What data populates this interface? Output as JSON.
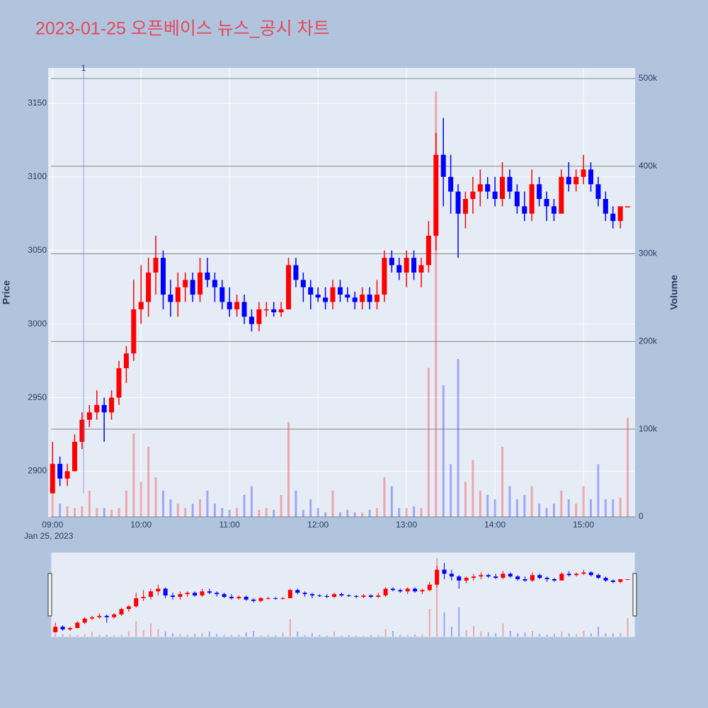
{
  "chart_data": {
    "type": "candlestick",
    "title": "2023-01-25 오픈베이스 뉴스_공시 차트",
    "ylabel": "Price",
    "y2label": "Volume",
    "x": [
      "2023-01-25 09:00",
      "2023-01-25 09:05",
      "2023-01-25 09:10",
      "2023-01-25 09:15",
      "2023-01-25 09:20",
      "2023-01-25 09:25",
      "2023-01-25 09:30",
      "2023-01-25 09:35",
      "2023-01-25 09:40",
      "2023-01-25 09:45",
      "2023-01-25 09:50",
      "2023-01-25 09:55",
      "2023-01-25 10:00",
      "2023-01-25 10:05",
      "2023-01-25 10:10",
      "2023-01-25 10:15",
      "2023-01-25 10:20",
      "2023-01-25 10:25",
      "2023-01-25 10:30",
      "2023-01-25 10:35",
      "2023-01-25 10:40",
      "2023-01-25 10:45",
      "2023-01-25 10:50",
      "2023-01-25 10:55",
      "2023-01-25 11:00",
      "2023-01-25 11:05",
      "2023-01-25 11:10",
      "2023-01-25 11:15",
      "2023-01-25 11:20",
      "2023-01-25 11:25",
      "2023-01-25 11:30",
      "2023-01-25 11:35",
      "2023-01-25 11:40",
      "2023-01-25 11:45",
      "2023-01-25 11:50",
      "2023-01-25 11:55",
      "2023-01-25 12:00",
      "2023-01-25 12:05",
      "2023-01-25 12:10",
      "2023-01-25 12:15",
      "2023-01-25 12:20",
      "2023-01-25 12:25",
      "2023-01-25 12:30",
      "2023-01-25 12:35",
      "2023-01-25 12:40",
      "2023-01-25 12:45",
      "2023-01-25 12:50",
      "2023-01-25 12:55",
      "2023-01-25 13:00",
      "2023-01-25 13:05",
      "2023-01-25 13:10",
      "2023-01-25 13:15",
      "2023-01-25 13:20",
      "2023-01-25 13:25",
      "2023-01-25 13:30",
      "2023-01-25 13:35",
      "2023-01-25 13:40",
      "2023-01-25 13:45",
      "2023-01-25 13:50",
      "2023-01-25 13:55",
      "2023-01-25 14:00",
      "2023-01-25 14:05",
      "2023-01-25 14:10",
      "2023-01-25 14:15",
      "2023-01-25 14:20",
      "2023-01-25 14:25",
      "2023-01-25 14:30",
      "2023-01-25 14:35",
      "2023-01-25 14:40",
      "2023-01-25 14:45",
      "2023-01-25 14:50",
      "2023-01-25 14:55",
      "2023-01-25 15:00",
      "2023-01-25 15:05",
      "2023-01-25 15:10",
      "2023-01-25 15:15",
      "2023-01-25 15:20",
      "2023-01-25 15:25",
      "2023-01-25 15:30"
    ],
    "open": [
      2885,
      2905,
      2895,
      2900,
      2920,
      2935,
      2940,
      2945,
      2940,
      2950,
      2970,
      2980,
      3010,
      3015,
      3035,
      3045,
      3020,
      3015,
      3025,
      3030,
      3020,
      3035,
      3030,
      3025,
      3015,
      3010,
      3015,
      3005,
      3000,
      3010,
      3010,
      3008,
      3010,
      3040,
      3030,
      3025,
      3020,
      3018,
      3015,
      3025,
      3020,
      3018,
      3015,
      3020,
      3015,
      3020,
      3045,
      3040,
      3035,
      3045,
      3035,
      3040,
      3060,
      3115,
      3100,
      3090,
      3075,
      3085,
      3090,
      3095,
      3090,
      3085,
      3100,
      3090,
      3080,
      3075,
      3095,
      3085,
      3080,
      3075,
      3100,
      3095,
      3100,
      3105,
      3095,
      3085,
      3075,
      3070,
      3080
    ],
    "high": [
      2920,
      2910,
      2905,
      2925,
      2940,
      2945,
      2955,
      2950,
      2955,
      2975,
      2985,
      3030,
      3040,
      3045,
      3060,
      3050,
      3030,
      3035,
      3035,
      3035,
      3045,
      3045,
      3035,
      3030,
      3025,
      3020,
      3020,
      3010,
      3015,
      3015,
      3015,
      3015,
      3045,
      3045,
      3035,
      3030,
      3025,
      3025,
      3030,
      3030,
      3025,
      3022,
      3025,
      3025,
      3030,
      3050,
      3050,
      3045,
      3050,
      3050,
      3045,
      3070,
      3130,
      3140,
      3115,
      3095,
      3090,
      3100,
      3105,
      3100,
      3100,
      3110,
      3105,
      3095,
      3090,
      3105,
      3100,
      3090,
      3085,
      3105,
      3110,
      3105,
      3115,
      3110,
      3100,
      3090,
      3080,
      3080,
      3080
    ],
    "low": [
      2885,
      2890,
      2890,
      2900,
      2915,
      2930,
      2935,
      2920,
      2935,
      2945,
      2960,
      2975,
      3000,
      3005,
      3020,
      3010,
      3005,
      3005,
      3015,
      3015,
      3015,
      3025,
      3015,
      3010,
      3005,
      3005,
      3000,
      2995,
      2995,
      3005,
      3005,
      3005,
      3010,
      3025,
      3015,
      3010,
      3015,
      3010,
      3010,
      3015,
      3015,
      3010,
      3010,
      3010,
      3010,
      3015,
      3035,
      3030,
      3025,
      3030,
      3025,
      3035,
      3050,
      3080,
      3075,
      3045,
      3065,
      3075,
      3080,
      3085,
      3080,
      3080,
      3085,
      3075,
      3070,
      3070,
      3080,
      3070,
      3070,
      3075,
      3090,
      3090,
      3095,
      3090,
      3080,
      3070,
      3065,
      3065,
      3080
    ],
    "close": [
      2905,
      2895,
      2900,
      2920,
      2935,
      2940,
      2945,
      2940,
      2950,
      2970,
      2980,
      3010,
      3015,
      3035,
      3045,
      3020,
      3015,
      3025,
      3030,
      3020,
      3035,
      3030,
      3025,
      3015,
      3010,
      3015,
      3005,
      3000,
      3010,
      3010,
      3008,
      3010,
      3040,
      3030,
      3025,
      3020,
      3018,
      3015,
      3025,
      3020,
      3018,
      3015,
      3020,
      3015,
      3020,
      3045,
      3040,
      3035,
      3045,
      3035,
      3040,
      3060,
      3115,
      3100,
      3090,
      3075,
      3085,
      3090,
      3095,
      3090,
      3085,
      3100,
      3090,
      3080,
      3075,
      3095,
      3085,
      3080,
      3075,
      3100,
      3095,
      3100,
      3105,
      3095,
      3085,
      3075,
      3070,
      3080,
      3080
    ],
    "volume": [
      30000,
      15000,
      12000,
      10000,
      12000,
      30000,
      10000,
      10000,
      8000,
      10000,
      30000,
      95000,
      40000,
      80000,
      45000,
      30000,
      20000,
      15000,
      10000,
      15000,
      20000,
      30000,
      15000,
      10000,
      8000,
      10000,
      25000,
      35000,
      8000,
      10000,
      8000,
      25000,
      108000,
      30000,
      8000,
      20000,
      10000,
      5000,
      30000,
      5000,
      8000,
      5000,
      5000,
      8000,
      10000,
      45000,
      35000,
      10000,
      10000,
      12000,
      10000,
      170000,
      485000,
      150000,
      60000,
      180000,
      40000,
      65000,
      30000,
      25000,
      20000,
      80000,
      35000,
      20000,
      25000,
      35000,
      15000,
      10000,
      15000,
      30000,
      20000,
      15000,
      35000,
      20000,
      60000,
      20000,
      20000,
      22000,
      113000
    ],
    "increasing_color": "#ff0000",
    "decreasing_color": "#0000ff",
    "ylim": [
      2869,
      3174
    ],
    "yticks": [
      2900,
      2950,
      3000,
      3050,
      3100,
      3150
    ],
    "y2lim": [
      0,
      512000
    ],
    "y2ticks": [
      0,
      {
        "value": 100000,
        "label": "100k"
      },
      {
        "value": 200000,
        "label": "200k"
      },
      {
        "value": 300000,
        "label": "300k"
      },
      {
        "value": 400000,
        "label": "400k"
      },
      {
        "value": 500000,
        "label": "500k"
      }
    ],
    "xlim": [
      "2023-01-25 08:57",
      "2023-01-25 15:35"
    ],
    "xticks": [
      {
        "value": "2023-01-25 09:00",
        "label": "09:00"
      },
      {
        "value": "2023-01-25 10:00",
        "label": "10:00"
      },
      {
        "value": "2023-01-25 11:00",
        "label": "11:00"
      },
      {
        "value": "2023-01-25 12:00",
        "label": "12:00"
      },
      {
        "value": "2023-01-25 13:00",
        "label": "13:00"
      },
      {
        "value": "2023-01-25 14:00",
        "label": "14:00"
      },
      {
        "value": "2023-01-25 15:00",
        "label": "15:00"
      }
    ],
    "x_date_label": "Jan 25, 2023",
    "annotations": [
      {
        "x": "2023-01-25 09:21",
        "text": "1"
      }
    ],
    "grid": true,
    "rangeslider": true
  }
}
